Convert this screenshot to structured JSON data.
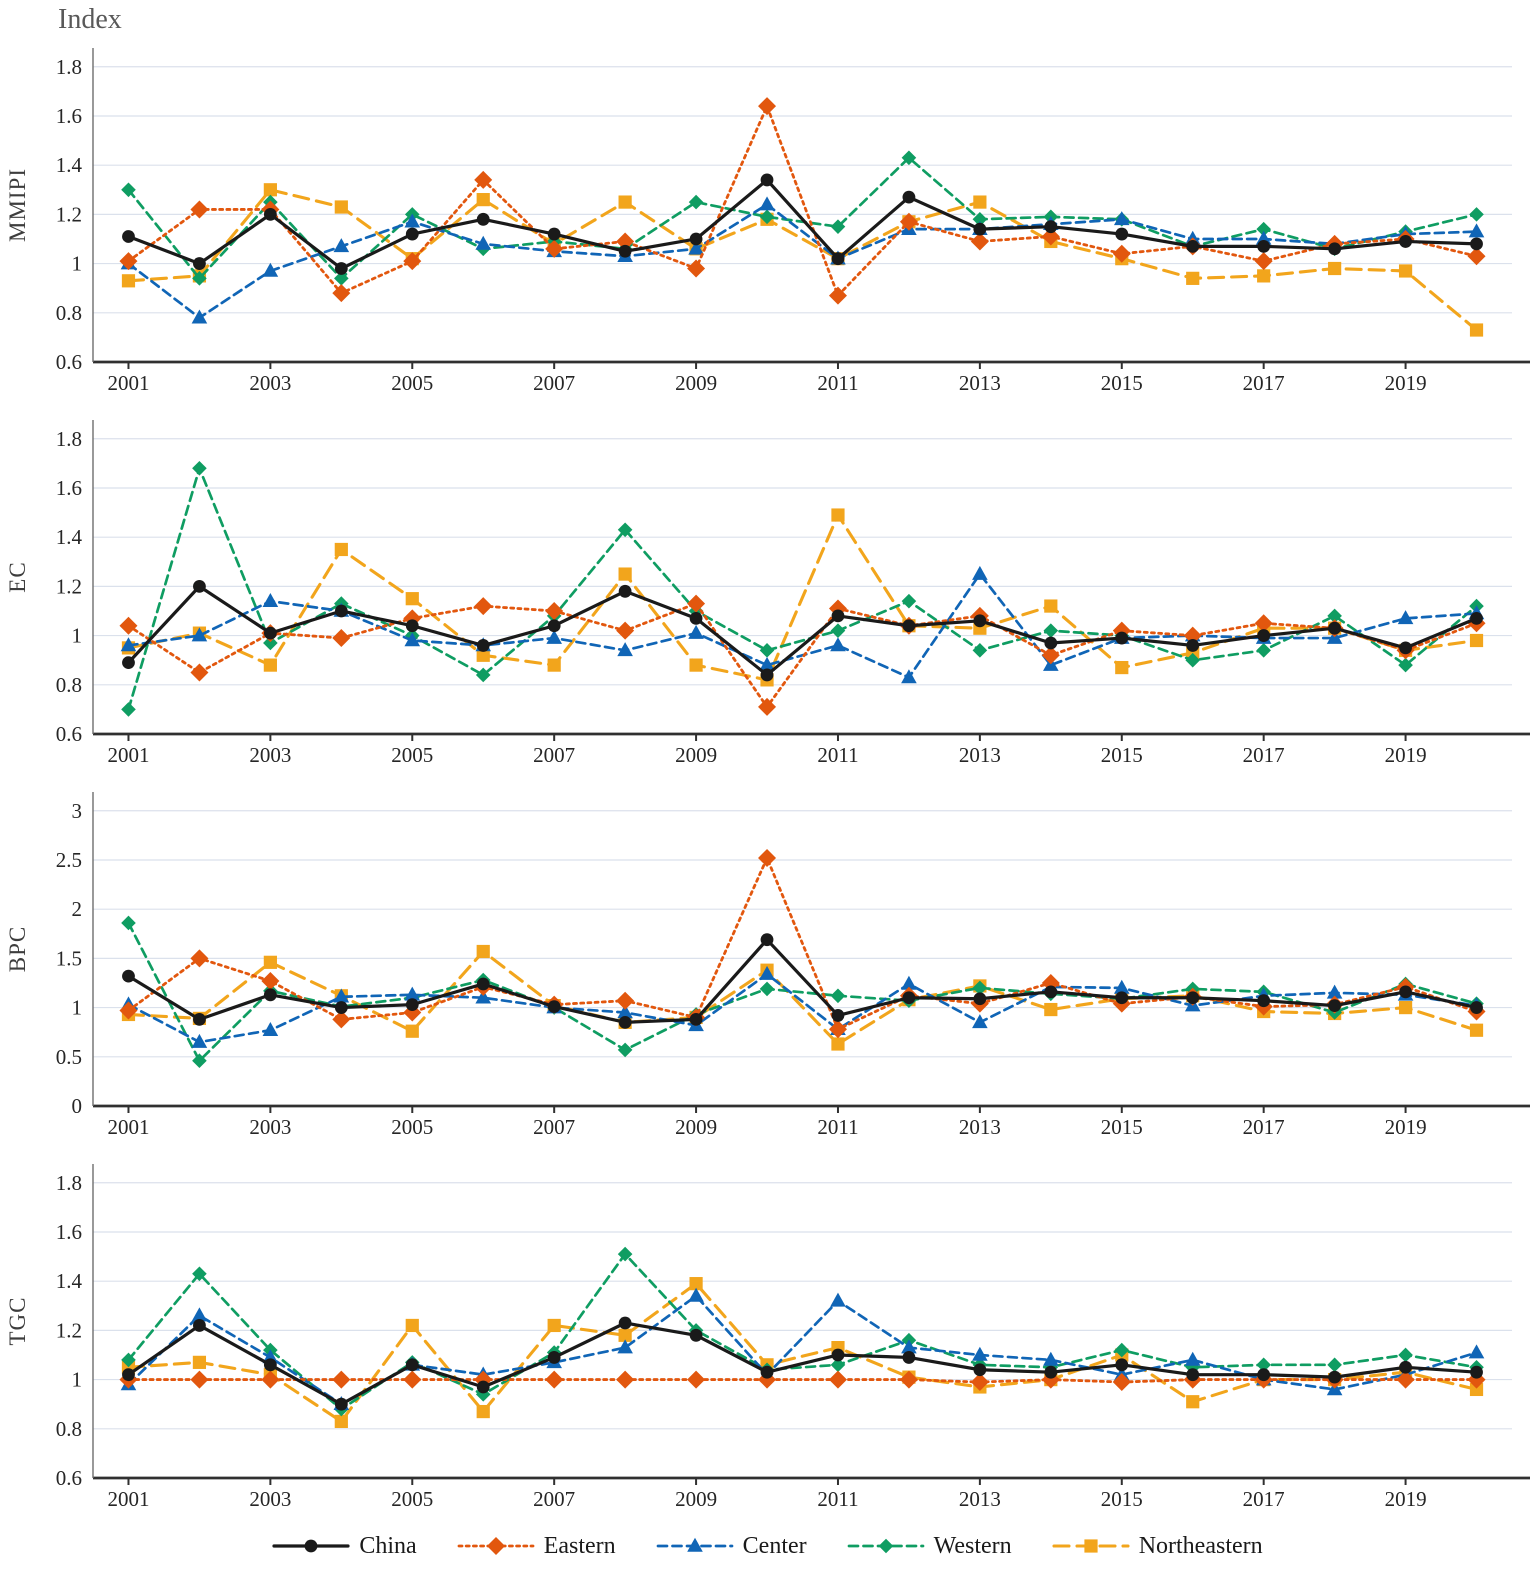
{
  "title": "Index",
  "chart_data": {
    "type": "line",
    "x_years": [
      2001,
      2002,
      2003,
      2004,
      2005,
      2006,
      2007,
      2008,
      2009,
      2010,
      2011,
      2012,
      2013,
      2014,
      2015,
      2016,
      2017,
      2018,
      2019,
      2020
    ],
    "xtick_labels": [
      "2001",
      "2003",
      "2005",
      "2007",
      "2009",
      "2011",
      "2013",
      "2015",
      "2017",
      "2019"
    ],
    "legend_position": "bottom",
    "grid": "horizontal",
    "colors": {
      "grid": "#dbe1ec",
      "axis_baseline": "#303030",
      "axis_y_line": "#6e6e6e",
      "tick_text": "#262626"
    },
    "series_meta": [
      {
        "id": "china",
        "label": "China",
        "color": "#1a1a1a",
        "dash": "solid",
        "marker": "circle"
      },
      {
        "id": "eastern",
        "label": "Eastern",
        "color": "#e2570e",
        "dash": "dotted",
        "marker": "diamond-large"
      },
      {
        "id": "center",
        "label": "Center",
        "color": "#1065b6",
        "dash": "dashed",
        "marker": "triangle"
      },
      {
        "id": "western",
        "label": "Western",
        "color": "#0f9d62",
        "dash": "dashed",
        "marker": "diamond"
      },
      {
        "id": "northeastern",
        "label": "Northeastern",
        "color": "#f2a51c",
        "dash": "long-dash",
        "marker": "square"
      }
    ],
    "panels": [
      {
        "ylabel": "MMIPI",
        "ymin": 0.6,
        "ytop_value": 1.86,
        "ytick_labels": [
          "1.8",
          "1.6",
          "1.4",
          "1.2",
          "1",
          "0.8",
          "0.6"
        ],
        "series": {
          "china": [
            1.11,
            1.0,
            1.2,
            0.98,
            1.12,
            1.18,
            1.12,
            1.05,
            1.1,
            1.34,
            1.02,
            1.27,
            1.14,
            1.15,
            1.12,
            1.07,
            1.07,
            1.06,
            1.09,
            1.08
          ],
          "eastern": [
            1.01,
            1.22,
            1.22,
            0.88,
            1.01,
            1.34,
            1.06,
            1.09,
            0.98,
            1.64,
            0.87,
            1.17,
            1.09,
            1.11,
            1.04,
            1.07,
            1.01,
            1.08,
            1.1,
            1.03
          ],
          "center": [
            1.0,
            0.78,
            0.97,
            1.07,
            1.17,
            1.08,
            1.05,
            1.03,
            1.06,
            1.24,
            1.02,
            1.14,
            1.14,
            1.16,
            1.18,
            1.1,
            1.1,
            1.08,
            1.12,
            1.13
          ],
          "western": [
            1.3,
            0.94,
            1.25,
            0.94,
            1.2,
            1.06,
            1.09,
            1.06,
            1.25,
            1.19,
            1.15,
            1.43,
            1.18,
            1.19,
            1.18,
            1.07,
            1.14,
            1.06,
            1.13,
            1.2
          ],
          "northeastern": [
            0.93,
            0.95,
            1.3,
            1.23,
            1.02,
            1.26,
            1.08,
            1.25,
            1.06,
            1.18,
            1.02,
            1.17,
            1.25,
            1.09,
            1.02,
            0.94,
            0.95,
            0.98,
            0.97,
            0.73
          ]
        }
      },
      {
        "ylabel": "EC",
        "ymin": 0.6,
        "ytop_value": 1.86,
        "ytick_labels": [
          "1.8",
          "1.6",
          "1.4",
          "1.2",
          "1",
          "0.8",
          "0.6"
        ],
        "series": {
          "china": [
            0.89,
            1.2,
            1.01,
            1.1,
            1.04,
            0.96,
            1.04,
            1.18,
            1.07,
            0.84,
            1.08,
            1.04,
            1.06,
            0.97,
            0.99,
            0.96,
            1.0,
            1.03,
            0.95,
            1.07
          ],
          "eastern": [
            1.04,
            0.85,
            1.01,
            0.99,
            1.07,
            1.12,
            1.1,
            1.02,
            1.13,
            0.71,
            1.11,
            1.04,
            1.08,
            0.92,
            1.02,
            1.0,
            1.05,
            1.03,
            0.94,
            1.05
          ],
          "center": [
            0.96,
            1.0,
            1.14,
            1.1,
            0.98,
            0.96,
            0.99,
            0.94,
            1.01,
            0.88,
            0.96,
            0.83,
            1.25,
            0.88,
            0.99,
            1.0,
            0.99,
            0.99,
            1.07,
            1.09
          ],
          "western": [
            0.7,
            1.68,
            0.97,
            1.13,
            1.0,
            0.84,
            1.08,
            1.43,
            1.1,
            0.94,
            1.02,
            1.14,
            0.94,
            1.02,
            1.0,
            0.9,
            0.94,
            1.08,
            0.88,
            1.12
          ],
          "northeastern": [
            0.95,
            1.01,
            0.88,
            1.35,
            1.15,
            0.92,
            0.88,
            1.25,
            0.88,
            0.82,
            1.49,
            1.04,
            1.03,
            1.12,
            0.87,
            0.93,
            1.03,
            1.03,
            0.94,
            0.98
          ]
        }
      },
      {
        "ylabel": "BPC",
        "ymin": 0,
        "ytop_value": 3.15,
        "ytick_labels": [
          "3",
          "2.5",
          "2",
          "1.5",
          "1",
          "0.5",
          "0"
        ],
        "series": {
          "china": [
            1.32,
            0.88,
            1.13,
            1.0,
            1.03,
            1.24,
            1.01,
            0.85,
            0.88,
            1.69,
            0.92,
            1.1,
            1.09,
            1.16,
            1.1,
            1.1,
            1.07,
            1.02,
            1.16,
            1.0
          ],
          "eastern": [
            0.97,
            1.5,
            1.27,
            0.88,
            0.95,
            1.21,
            1.03,
            1.07,
            0.9,
            2.52,
            0.78,
            1.12,
            1.04,
            1.25,
            1.04,
            1.11,
            1.01,
            1.03,
            1.21,
            0.96
          ],
          "center": [
            1.03,
            0.65,
            0.77,
            1.11,
            1.13,
            1.1,
            1.0,
            0.95,
            0.82,
            1.34,
            0.78,
            1.24,
            0.85,
            1.21,
            1.2,
            1.02,
            1.12,
            1.15,
            1.13,
            1.02
          ],
          "western": [
            1.86,
            0.46,
            1.17,
            1.01,
            1.1,
            1.28,
            1.0,
            0.57,
            0.93,
            1.19,
            1.12,
            1.07,
            1.2,
            1.14,
            1.09,
            1.19,
            1.16,
            0.95,
            1.24,
            1.04
          ],
          "northeastern": [
            0.93,
            0.89,
            1.46,
            1.12,
            0.76,
            1.57,
            1.02,
            0.85,
            0.9,
            1.38,
            0.63,
            1.08,
            1.22,
            0.98,
            1.09,
            1.12,
            0.96,
            0.94,
            1.0,
            0.77
          ]
        }
      },
      {
        "ylabel": "TGC",
        "ymin": 0.6,
        "ytop_value": 1.86,
        "ytick_labels": [
          "1.8",
          "1.6",
          "1.4",
          "1.2",
          "1",
          "0.8",
          "0.6"
        ],
        "series": {
          "china": [
            1.02,
            1.22,
            1.06,
            0.9,
            1.06,
            0.97,
            1.09,
            1.23,
            1.18,
            1.03,
            1.1,
            1.09,
            1.04,
            1.03,
            1.06,
            1.02,
            1.02,
            1.01,
            1.05,
            1.03
          ],
          "eastern": [
            1.0,
            1.0,
            1.0,
            1.0,
            1.0,
            1.0,
            1.0,
            1.0,
            1.0,
            1.0,
            1.0,
            1.0,
            0.99,
            1.0,
            0.99,
            1.0,
            1.0,
            1.0,
            1.0,
            1.0
          ],
          "center": [
            0.98,
            1.26,
            1.09,
            0.9,
            1.06,
            1.02,
            1.07,
            1.13,
            1.34,
            1.02,
            1.32,
            1.13,
            1.1,
            1.08,
            1.02,
            1.08,
            1.0,
            0.96,
            1.02,
            1.11
          ],
          "western": [
            1.08,
            1.43,
            1.12,
            0.88,
            1.07,
            0.94,
            1.11,
            1.51,
            1.2,
            1.04,
            1.06,
            1.16,
            1.06,
            1.05,
            1.12,
            1.05,
            1.06,
            1.06,
            1.1,
            1.05
          ],
          "northeastern": [
            1.05,
            1.07,
            1.02,
            0.83,
            1.22,
            0.87,
            1.22,
            1.18,
            1.39,
            1.06,
            1.13,
            1.01,
            0.97,
            1.0,
            1.1,
            0.91,
            1.0,
            1.0,
            1.03,
            0.96
          ]
        }
      }
    ]
  }
}
